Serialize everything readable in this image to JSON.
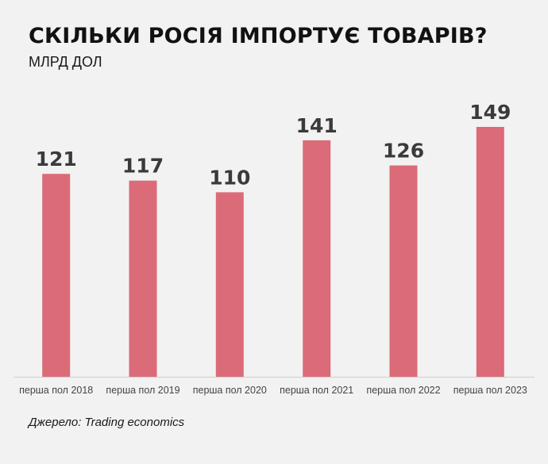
{
  "chart_data": {
    "type": "bar",
    "title": "СКІЛЬКИ РОСІЯ ІМПОРТУЄ ТОВАРІВ?",
    "subtitle": "МЛРД ДОЛ",
    "xlabel": "",
    "ylabel": "",
    "categories": [
      "перша пол 2018",
      "перша пол 2019",
      "перша пол 2020",
      "перша пол 2021",
      "перша пол 2022",
      "перша пол 2023"
    ],
    "values": [
      121,
      117,
      110,
      141,
      126,
      149
    ],
    "data_labels": [
      "121",
      "117",
      "110",
      "141",
      "126",
      "149"
    ],
    "ylim": [
      0,
      149
    ],
    "grid": false,
    "legend": "none",
    "bar_color": "#db6b78",
    "label_color": "#3a3a3a",
    "axis_color": "#cfcfcf",
    "source": "Джерело: Trading economics"
  }
}
